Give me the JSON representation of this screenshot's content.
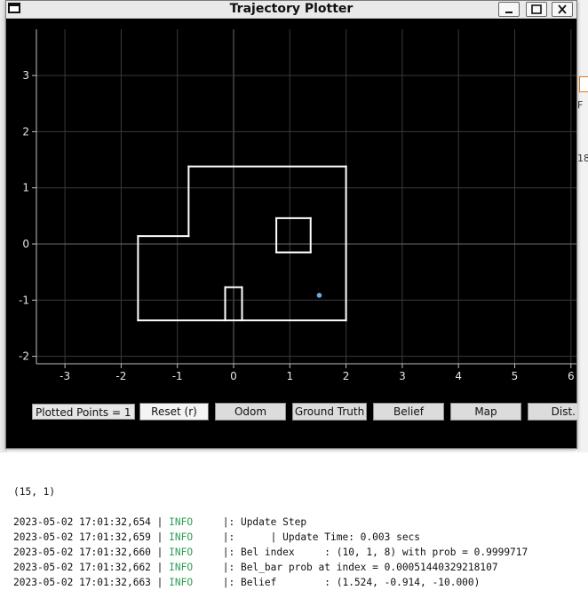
{
  "window": {
    "title": "Trajectory Plotter"
  },
  "plot": {
    "x_ticks": [
      "-3",
      "-2",
      "-1",
      "0",
      "1",
      "2",
      "3",
      "4",
      "5",
      "6"
    ],
    "y_ticks": [
      "3",
      "2",
      "1",
      "0",
      "-1",
      "-2"
    ],
    "colors": {
      "background": "#000000",
      "map_lines": "#ffffff",
      "grid": "#3a3a3a",
      "point": "#6fa8dc"
    },
    "map_segments": [
      [
        [
          -1.7,
          0.14
        ],
        [
          -0.8,
          0.14
        ]
      ],
      [
        [
          -0.8,
          0.14
        ],
        [
          -0.8,
          1.38
        ]
      ],
      [
        [
          -0.8,
          1.38
        ],
        [
          2.0,
          1.38
        ]
      ],
      [
        [
          2.0,
          1.38
        ],
        [
          2.0,
          -1.36
        ]
      ],
      [
        [
          2.0,
          -1.36
        ],
        [
          -1.7,
          -1.36
        ]
      ],
      [
        [
          -1.7,
          -1.36
        ],
        [
          -1.7,
          0.14
        ]
      ],
      [
        [
          0.76,
          0.46
        ],
        [
          1.37,
          0.46
        ]
      ],
      [
        [
          1.37,
          0.46
        ],
        [
          1.37,
          -0.15
        ]
      ],
      [
        [
          1.37,
          -0.15
        ],
        [
          0.76,
          -0.15
        ]
      ],
      [
        [
          0.76,
          -0.15
        ],
        [
          0.76,
          0.46
        ]
      ],
      [
        [
          -0.15,
          -1.36
        ],
        [
          -0.15,
          -0.77
        ]
      ],
      [
        [
          -0.15,
          -0.77
        ],
        [
          0.15,
          -0.77
        ]
      ],
      [
        [
          0.15,
          -0.77
        ],
        [
          0.15,
          -1.36
        ]
      ]
    ],
    "points": [
      {
        "x": 1.524,
        "y": -0.914
      }
    ]
  },
  "controls": {
    "plotted_points": "Plotted Points = 1",
    "buttons": [
      "Reset (r)",
      "Odom",
      "Ground Truth",
      "Belief",
      "Map",
      "Dist."
    ]
  },
  "log": {
    "first_line": "(15, 1)",
    "entries": [
      {
        "ts": "2023-05-02 17:01:32,654",
        "level": "INFO",
        "msg": ": Update Step"
      },
      {
        "ts": "2023-05-02 17:01:32,659",
        "level": "INFO",
        "msg": ":      | Update Time: 0.003 secs"
      },
      {
        "ts": "2023-05-02 17:01:32,660",
        "level": "INFO",
        "msg": ": Bel index     : (10, 1, 8) with prob = 0.9999717"
      },
      {
        "ts": "2023-05-02 17:01:32,662",
        "level": "INFO",
        "msg": ": Bel_bar prob at index = 0.00051440329218107"
      },
      {
        "ts": "2023-05-02 17:01:32,663",
        "level": "INFO",
        "msg": ": Belief        : (1.524, -0.914, -10.000)"
      }
    ]
  },
  "background": {
    "right_tags": [
      "F",
      "18"
    ]
  }
}
